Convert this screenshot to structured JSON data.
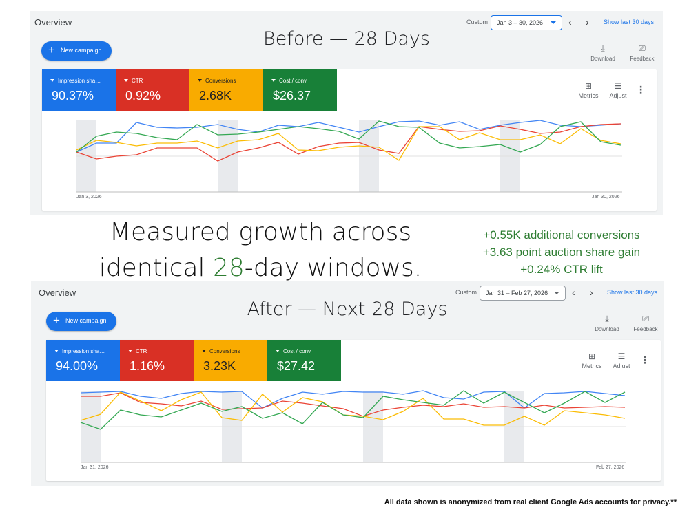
{
  "before": {
    "overview": "Overview",
    "heading": "Before — 28 Days",
    "custom_label": "Custom",
    "date_range": "Jan 3 – 30, 2026",
    "show_last": "Show last 30 days",
    "new_campaign": "New campaign",
    "download": "Download",
    "feedback": "Feedback",
    "metrics": [
      {
        "label": "Impression sha…",
        "value": "90.37%",
        "color": "#1a73e8"
      },
      {
        "label": "CTR",
        "value": "0.92%",
        "color": "#d93025"
      },
      {
        "label": "Conversions",
        "value": "2.68K",
        "color": "#f9ab00"
      },
      {
        "label": "Cost / conv.",
        "value": "$26.37",
        "color": "#188038"
      }
    ],
    "metrics_btn": "Metrics",
    "adjust_btn": "Adjust",
    "x_start": "Jan 3, 2026",
    "x_end": "Jan 30, 2026"
  },
  "after": {
    "overview": "Overview",
    "heading": "After — Next 28 Days",
    "custom_label": "Custom",
    "date_range": "Jan 31 – Feb 27, 2026",
    "show_last": "Show last 30 days",
    "new_campaign": "New campaign",
    "download": "Download",
    "feedback": "Feedback",
    "metrics": [
      {
        "label": "Impression sha…",
        "value": "94.00%",
        "color": "#1a73e8"
      },
      {
        "label": "CTR",
        "value": "1.16%",
        "color": "#d93025"
      },
      {
        "label": "Conversions",
        "value": "3.23K",
        "color": "#f9ab00"
      },
      {
        "label": "Cost / conv.",
        "value": "$27.42",
        "color": "#188038"
      }
    ],
    "metrics_btn": "Metrics",
    "adjust_btn": "Adjust",
    "x_start": "Jan 31, 2026",
    "x_end": "Feb 27, 2026"
  },
  "headline": {
    "line1": "Measured growth across",
    "line2_pre": "identical ",
    "line2_num": "28",
    "line2_post": "-day windows."
  },
  "gains": [
    "+0.55K additional conversions",
    "+3.63 point auction share gain",
    "+0.24% CTR lift"
  ],
  "footnote": "All data shown is anonymized from real client Google Ads accounts for privacy.**",
  "icons": {
    "download": "download-icon",
    "feedback": "feedback-icon",
    "metrics": "metrics-icon",
    "adjust": "adjust-icon",
    "more": "more-vert-icon",
    "prev": "chevron-left-icon",
    "next": "chevron-right-icon"
  }
}
